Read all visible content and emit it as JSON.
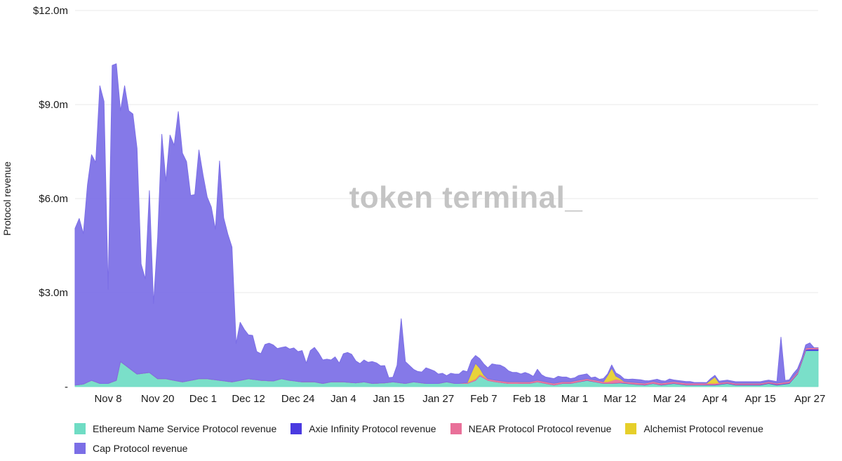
{
  "chart_data": {
    "type": "area",
    "stacked": true,
    "ylabel": "Protocol revenue",
    "watermark": "token terminal_",
    "y_ticks": [
      "-",
      "$3.0m",
      "$6.0m",
      "$9.0m",
      "$12.0m"
    ],
    "y_tick_values": [
      0,
      3,
      6,
      9,
      12
    ],
    "ylim": [
      0,
      12
    ],
    "y_unit": "millions USD",
    "x_tick_labels": [
      "Nov 8",
      "Nov 20",
      "Dec 1",
      "Dec 12",
      "Dec 24",
      "Jan 4",
      "Jan 15",
      "Jan 27",
      "Feb 7",
      "Feb 18",
      "Mar 1",
      "Mar 12",
      "Mar 24",
      "Apr 4",
      "Apr 15",
      "Apr 27"
    ],
    "x_tick_days": [
      8,
      20,
      31,
      42,
      54,
      65,
      76,
      88,
      99,
      110,
      121,
      132,
      144,
      155,
      166,
      178
    ],
    "x_domain_days": [
      0,
      180
    ],
    "grid": "horizontal",
    "legend_position": "bottom",
    "series": [
      {
        "name": "Ethereum Name Service Protocol revenue",
        "color": "#6fdcc4",
        "points": [
          [
            0,
            0.05
          ],
          [
            2,
            0.08
          ],
          [
            4,
            0.2
          ],
          [
            6,
            0.1
          ],
          [
            8,
            0.1
          ],
          [
            10,
            0.2
          ],
          [
            11,
            0.8
          ],
          [
            13,
            0.6
          ],
          [
            15,
            0.4
          ],
          [
            18,
            0.45
          ],
          [
            20,
            0.25
          ],
          [
            22,
            0.25
          ],
          [
            24,
            0.2
          ],
          [
            26,
            0.15
          ],
          [
            28,
            0.2
          ],
          [
            30,
            0.25
          ],
          [
            32,
            0.25
          ],
          [
            35,
            0.2
          ],
          [
            38,
            0.15
          ],
          [
            40,
            0.2
          ],
          [
            42,
            0.25
          ],
          [
            45,
            0.2
          ],
          [
            48,
            0.18
          ],
          [
            50,
            0.25
          ],
          [
            52,
            0.2
          ],
          [
            55,
            0.15
          ],
          [
            58,
            0.15
          ],
          [
            60,
            0.1
          ],
          [
            62,
            0.15
          ],
          [
            65,
            0.15
          ],
          [
            68,
            0.12
          ],
          [
            70,
            0.15
          ],
          [
            72,
            0.1
          ],
          [
            75,
            0.12
          ],
          [
            77,
            0.15
          ],
          [
            80,
            0.1
          ],
          [
            82,
            0.15
          ],
          [
            85,
            0.1
          ],
          [
            88,
            0.1
          ],
          [
            90,
            0.15
          ],
          [
            92,
            0.1
          ],
          [
            95,
            0.1
          ],
          [
            97,
            0.2
          ],
          [
            98,
            0.35
          ],
          [
            100,
            0.2
          ],
          [
            102,
            0.15
          ],
          [
            105,
            0.1
          ],
          [
            108,
            0.1
          ],
          [
            110,
            0.1
          ],
          [
            112,
            0.15
          ],
          [
            114,
            0.1
          ],
          [
            116,
            0.05
          ],
          [
            118,
            0.1
          ],
          [
            120,
            0.1
          ],
          [
            122,
            0.15
          ],
          [
            124,
            0.2
          ],
          [
            126,
            0.15
          ],
          [
            128,
            0.1
          ],
          [
            130,
            0.1
          ],
          [
            132,
            0.12
          ],
          [
            135,
            0.08
          ],
          [
            138,
            0.05
          ],
          [
            140,
            0.1
          ],
          [
            142,
            0.05
          ],
          [
            145,
            0.1
          ],
          [
            148,
            0.05
          ],
          [
            150,
            0.05
          ],
          [
            152,
            0.05
          ],
          [
            155,
            0.05
          ],
          [
            158,
            0.1
          ],
          [
            160,
            0.05
          ],
          [
            163,
            0.05
          ],
          [
            166,
            0.05
          ],
          [
            168,
            0.1
          ],
          [
            170,
            0.05
          ],
          [
            173,
            0.1
          ],
          [
            175,
            0.4
          ],
          [
            177,
            1.15
          ],
          [
            180,
            1.15
          ]
        ]
      },
      {
        "name": "Axie Infinity Protocol revenue",
        "color": "#4a3ae0",
        "points": [
          [
            0,
            0.0
          ],
          [
            100,
            0.0
          ],
          [
            176,
            0.02
          ],
          [
            178,
            0.05
          ],
          [
            180,
            0.05
          ]
        ]
      },
      {
        "name": "NEAR Protocol Protocol revenue",
        "color": "#e97099",
        "points": [
          [
            0,
            0.0
          ],
          [
            93,
            0.0
          ],
          [
            96,
            0.04
          ],
          [
            100,
            0.05
          ],
          [
            110,
            0.05
          ],
          [
            120,
            0.05
          ],
          [
            129,
            0.05
          ],
          [
            131,
            0.12
          ],
          [
            133,
            0.05
          ],
          [
            150,
            0.05
          ],
          [
            160,
            0.04
          ],
          [
            170,
            0.04
          ],
          [
            175,
            0.05
          ],
          [
            180,
            0.04
          ]
        ]
      },
      {
        "name": "Alchemist Protocol revenue",
        "color": "#e6cf2a",
        "points": [
          [
            0,
            0.0
          ],
          [
            95,
            0.0
          ],
          [
            97,
            0.5
          ],
          [
            98,
            0.2
          ],
          [
            99,
            0.05
          ],
          [
            100,
            0.0
          ],
          [
            128,
            0.0
          ],
          [
            130,
            0.4
          ],
          [
            131,
            0.1
          ],
          [
            133,
            0.0
          ],
          [
            153,
            0.0
          ],
          [
            155,
            0.2
          ],
          [
            156,
            0.0
          ],
          [
            180,
            0.0
          ]
        ]
      },
      {
        "name": "Cap Protocol revenue",
        "color": "#7b6ee6",
        "points": [
          [
            0,
            5.0
          ],
          [
            1,
            5.3
          ],
          [
            2,
            4.8
          ],
          [
            3,
            6.3
          ],
          [
            4,
            7.2
          ],
          [
            5,
            7.0
          ],
          [
            6,
            9.5
          ],
          [
            7,
            9.0
          ],
          [
            8,
            3.0
          ],
          [
            9,
            10.1
          ],
          [
            10,
            10.1
          ],
          [
            11,
            8.0
          ],
          [
            12,
            8.9
          ],
          [
            13,
            8.2
          ],
          [
            14,
            8.2
          ],
          [
            15,
            7.2
          ],
          [
            16,
            3.5
          ],
          [
            17,
            3.0
          ],
          [
            18,
            5.8
          ],
          [
            19,
            2.3
          ],
          [
            20,
            4.5
          ],
          [
            21,
            7.8
          ],
          [
            22,
            6.3
          ],
          [
            23,
            7.8
          ],
          [
            24,
            7.5
          ],
          [
            25,
            8.6
          ],
          [
            26,
            7.3
          ],
          [
            27,
            7.0
          ],
          [
            28,
            5.9
          ],
          [
            29,
            5.9
          ],
          [
            30,
            7.3
          ],
          [
            31,
            6.5
          ],
          [
            32,
            5.8
          ],
          [
            33,
            5.5
          ],
          [
            34,
            4.8
          ],
          [
            35,
            7.0
          ],
          [
            36,
            5.2
          ],
          [
            37,
            4.7
          ],
          [
            38,
            4.3
          ],
          [
            39,
            1.2
          ],
          [
            40,
            1.85
          ],
          [
            41,
            1.6
          ],
          [
            42,
            1.4
          ],
          [
            43,
            1.4
          ],
          [
            44,
            0.9
          ],
          [
            45,
            0.85
          ],
          [
            46,
            1.15
          ],
          [
            47,
            1.2
          ],
          [
            48,
            1.15
          ],
          [
            49,
            1.0
          ],
          [
            50,
            1.0
          ],
          [
            51,
            1.05
          ],
          [
            52,
            1.0
          ],
          [
            53,
            1.05
          ],
          [
            54,
            0.95
          ],
          [
            55,
            1.0
          ],
          [
            56,
            0.6
          ],
          [
            57,
            1.0
          ],
          [
            58,
            1.1
          ],
          [
            59,
            0.95
          ],
          [
            60,
            0.75
          ],
          [
            61,
            0.75
          ],
          [
            62,
            0.7
          ],
          [
            63,
            0.8
          ],
          [
            64,
            0.6
          ],
          [
            65,
            0.9
          ],
          [
            66,
            0.95
          ],
          [
            67,
            0.9
          ],
          [
            68,
            0.7
          ],
          [
            69,
            0.6
          ],
          [
            70,
            0.7
          ],
          [
            71,
            0.65
          ],
          [
            72,
            0.7
          ],
          [
            73,
            0.65
          ],
          [
            74,
            0.55
          ],
          [
            75,
            0.55
          ],
          [
            76,
            0.15
          ],
          [
            77,
            0.15
          ],
          [
            78,
            0.55
          ],
          [
            79,
            2.05
          ],
          [
            80,
            0.7
          ],
          [
            81,
            0.55
          ],
          [
            82,
            0.4
          ],
          [
            83,
            0.35
          ],
          [
            84,
            0.35
          ],
          [
            85,
            0.5
          ],
          [
            86,
            0.45
          ],
          [
            87,
            0.4
          ],
          [
            88,
            0.3
          ],
          [
            89,
            0.3
          ],
          [
            90,
            0.2
          ],
          [
            91,
            0.3
          ],
          [
            92,
            0.3
          ],
          [
            93,
            0.3
          ],
          [
            94,
            0.4
          ],
          [
            95,
            0.35
          ],
          [
            96,
            0.4
          ],
          [
            97,
            0.25
          ],
          [
            98,
            0.3
          ],
          [
            99,
            0.35
          ],
          [
            100,
            0.35
          ],
          [
            101,
            0.5
          ],
          [
            102,
            0.5
          ],
          [
            103,
            0.5
          ],
          [
            104,
            0.45
          ],
          [
            105,
            0.35
          ],
          [
            106,
            0.3
          ],
          [
            107,
            0.3
          ],
          [
            108,
            0.25
          ],
          [
            109,
            0.3
          ],
          [
            110,
            0.25
          ],
          [
            111,
            0.15
          ],
          [
            112,
            0.35
          ],
          [
            113,
            0.2
          ],
          [
            114,
            0.15
          ],
          [
            115,
            0.15
          ],
          [
            116,
            0.15
          ],
          [
            117,
            0.2
          ],
          [
            118,
            0.15
          ],
          [
            119,
            0.15
          ],
          [
            120,
            0.1
          ],
          [
            121,
            0.1
          ],
          [
            122,
            0.15
          ],
          [
            123,
            0.15
          ],
          [
            124,
            0.15
          ],
          [
            125,
            0.05
          ],
          [
            126,
            0.1
          ],
          [
            127,
            0.05
          ],
          [
            128,
            0.1
          ],
          [
            129,
            0.05
          ],
          [
            130,
            0.1
          ],
          [
            131,
            0.1
          ],
          [
            132,
            0.1
          ],
          [
            133,
            0.08
          ],
          [
            134,
            0.08
          ],
          [
            135,
            0.1
          ],
          [
            136,
            0.1
          ],
          [
            137,
            0.1
          ],
          [
            138,
            0.08
          ],
          [
            139,
            0.05
          ],
          [
            140,
            0.05
          ],
          [
            141,
            0.1
          ],
          [
            142,
            0.08
          ],
          [
            143,
            0.05
          ],
          [
            144,
            0.1
          ],
          [
            145,
            0.05
          ],
          [
            146,
            0.05
          ],
          [
            147,
            0.05
          ],
          [
            148,
            0.05
          ],
          [
            149,
            0.05
          ],
          [
            150,
            0.02
          ],
          [
            151,
            0.02
          ],
          [
            152,
            0.02
          ],
          [
            153,
            0.02
          ],
          [
            154,
            0.05
          ],
          [
            155,
            0.05
          ],
          [
            156,
            0.05
          ],
          [
            157,
            0.05
          ],
          [
            158,
            0.05
          ],
          [
            159,
            0.05
          ],
          [
            160,
            0.05
          ],
          [
            161,
            0.05
          ],
          [
            162,
            0.05
          ],
          [
            163,
            0.05
          ],
          [
            164,
            0.05
          ],
          [
            165,
            0.05
          ],
          [
            166,
            0.05
          ],
          [
            167,
            0.05
          ],
          [
            168,
            0.05
          ],
          [
            169,
            0.05
          ],
          [
            170,
            0.05
          ],
          [
            171,
            1.45
          ],
          [
            172,
            0.05
          ],
          [
            173,
            0.05
          ],
          [
            174,
            0.1
          ],
          [
            175,
            0.1
          ],
          [
            176,
            0.05
          ],
          [
            177,
            0.1
          ],
          [
            178,
            0.15
          ],
          [
            179,
            0.0
          ],
          [
            180,
            0.0
          ]
        ]
      }
    ]
  }
}
